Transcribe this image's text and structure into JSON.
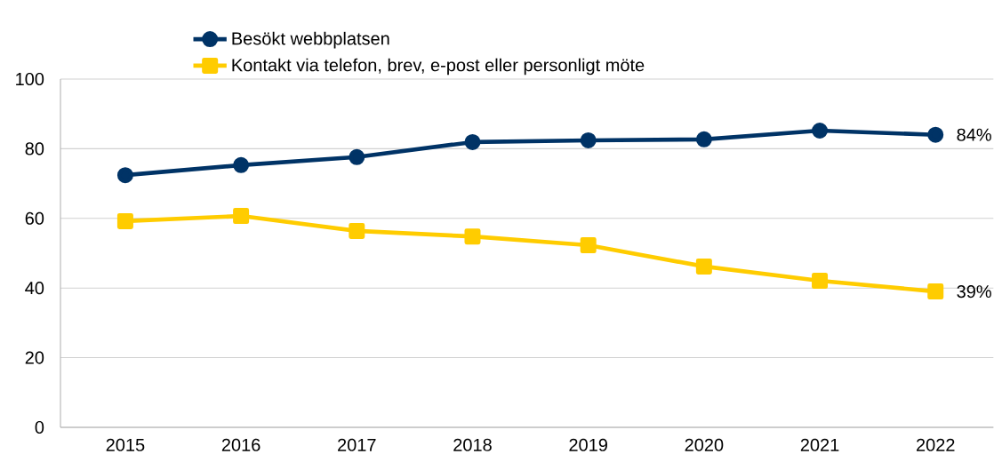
{
  "chart_data": {
    "type": "line",
    "categories": [
      "2015",
      "2016",
      "2017",
      "2018",
      "2019",
      "2020",
      "2021",
      "2022"
    ],
    "series": [
      {
        "name": "Besökt webbplatsen",
        "color": "#003366",
        "marker": "circle",
        "values": [
          72.4,
          75.3,
          77.6,
          81.9,
          82.4,
          82.7,
          85.2,
          84
        ],
        "value_labels": [
          null,
          null,
          null,
          null,
          null,
          null,
          null,
          "84%"
        ]
      },
      {
        "name": "Kontakt via telefon, brev, e-post eller personligt möte",
        "color": "#ffcc00",
        "marker": "square",
        "values": [
          59.2,
          60.7,
          56.4,
          54.8,
          52.3,
          46.2,
          42.1,
          39
        ],
        "value_labels": [
          null,
          null,
          null,
          null,
          null,
          null,
          null,
          "39%"
        ]
      }
    ],
    "ylim": [
      0,
      100
    ],
    "yticks": [
      0,
      20,
      40,
      60,
      80,
      100
    ],
    "grid": "y",
    "legend": "top"
  }
}
